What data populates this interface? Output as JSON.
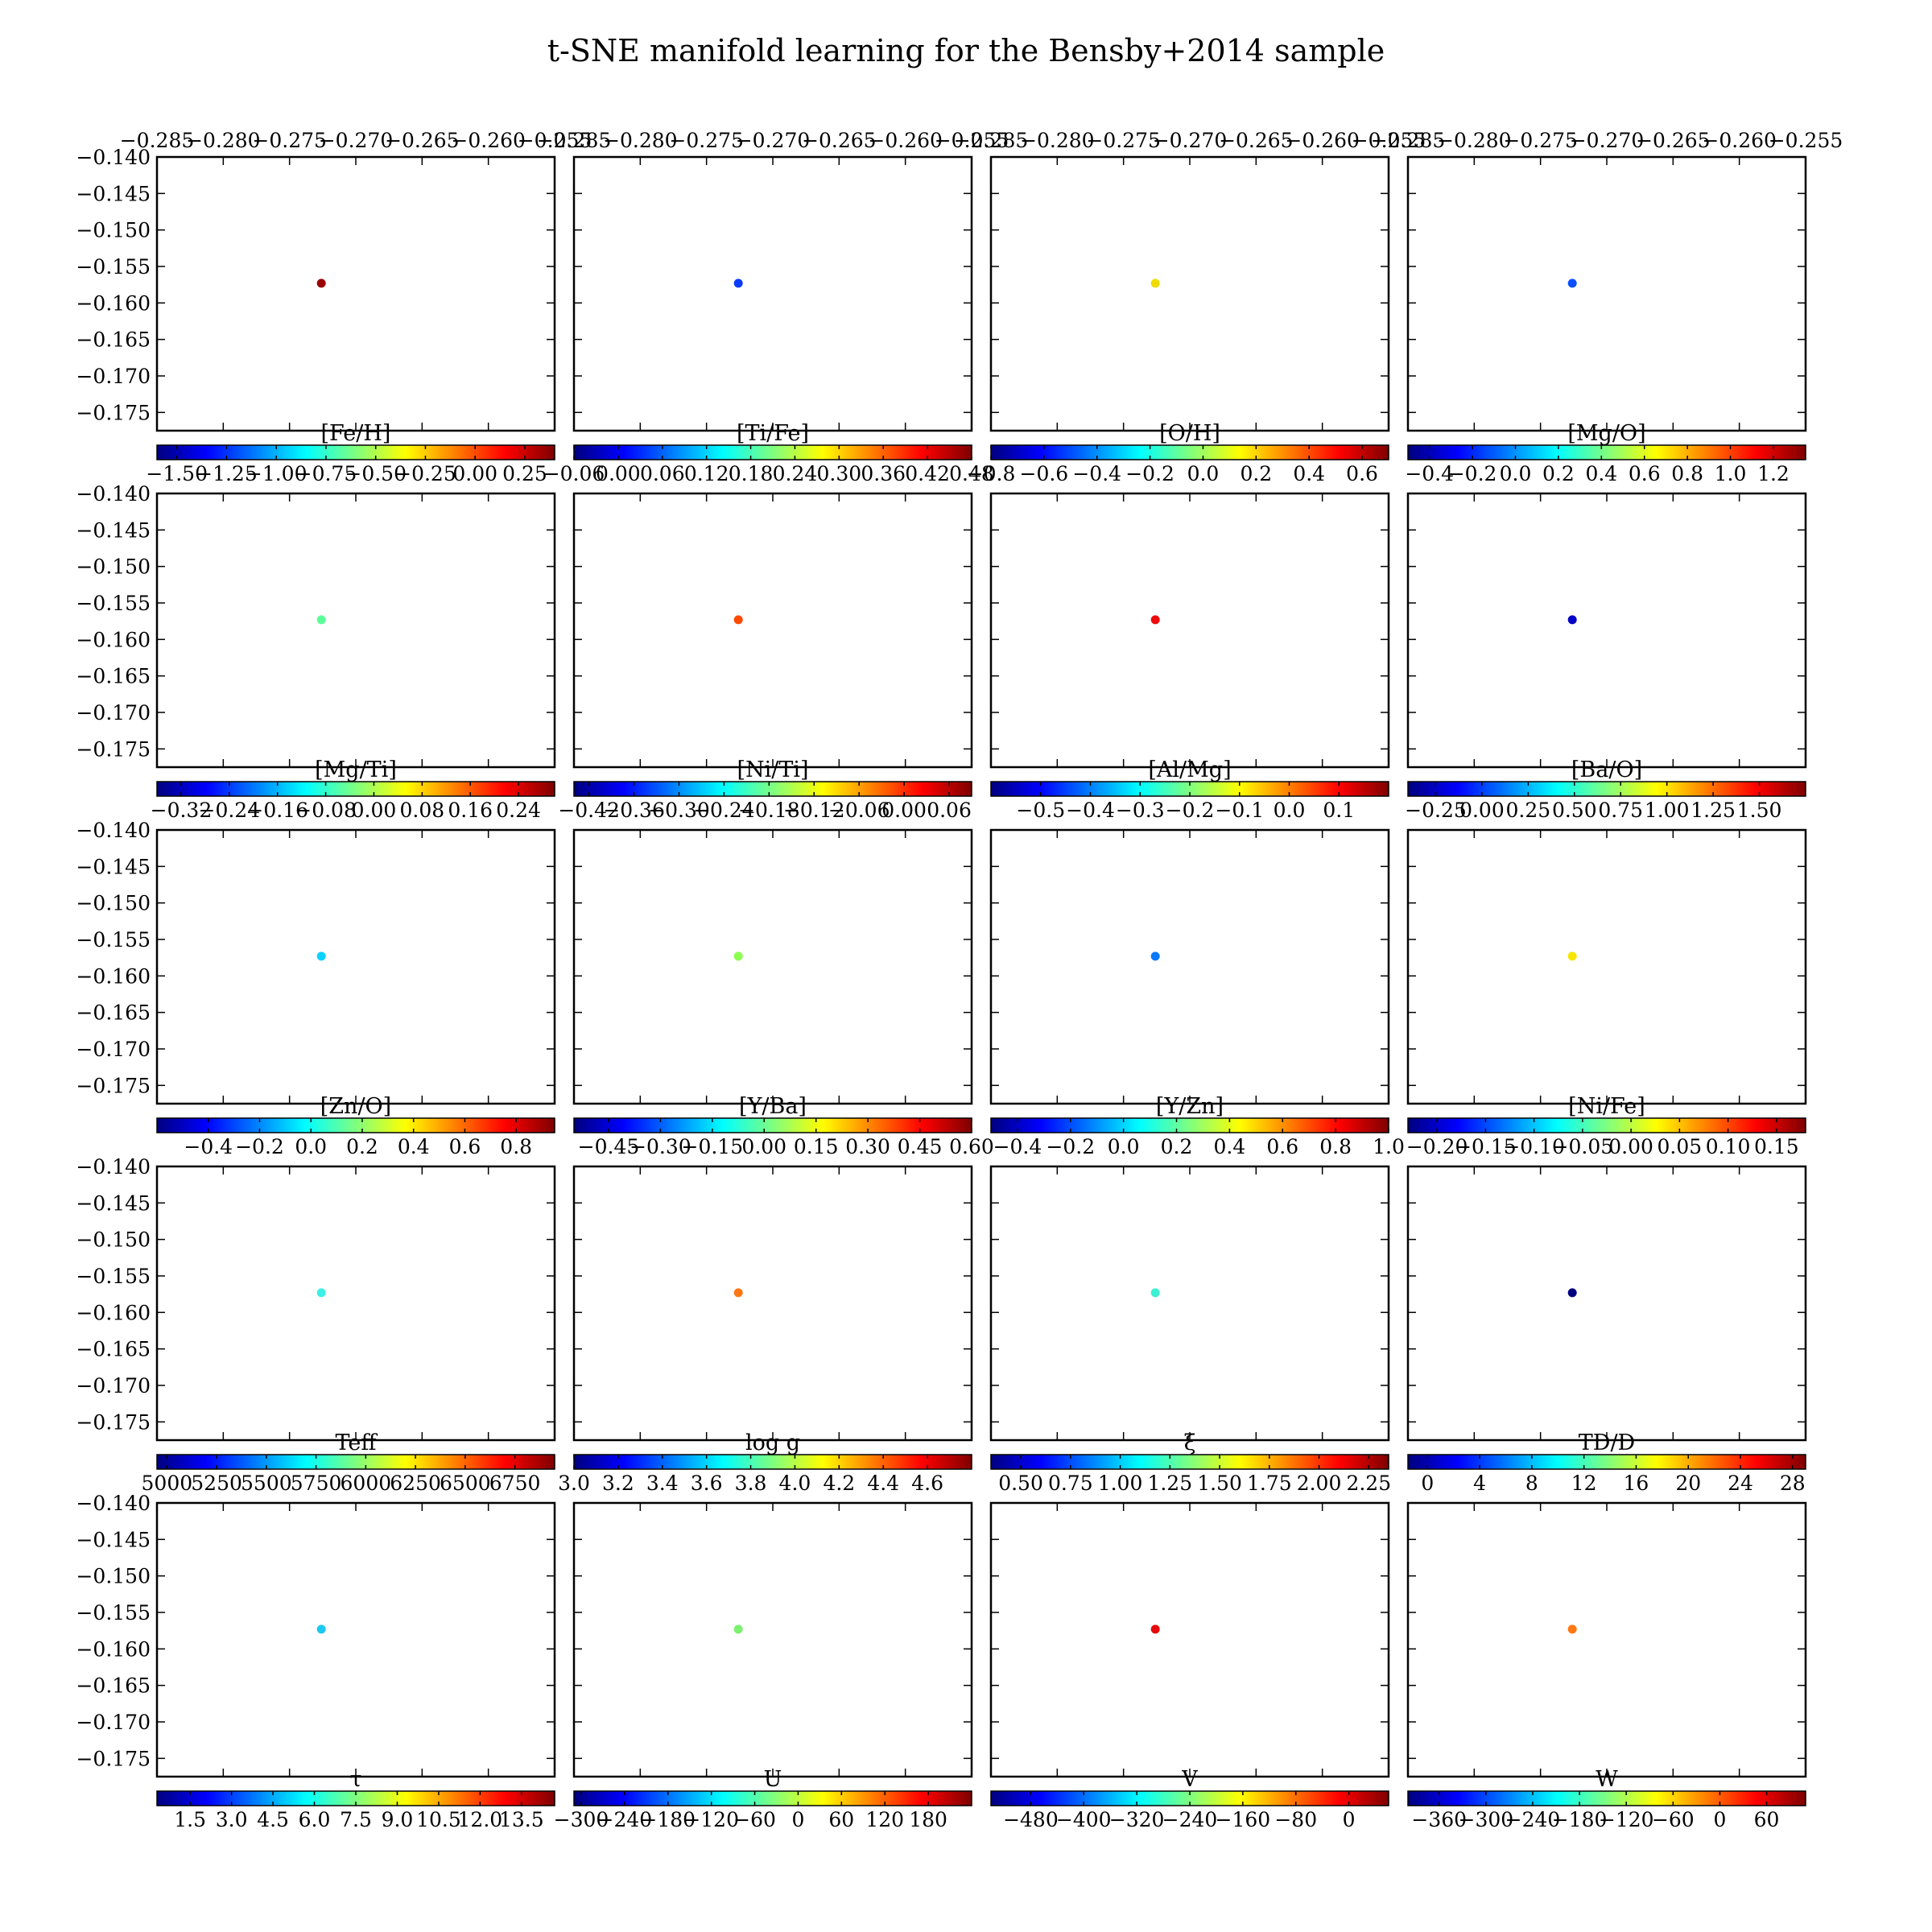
{
  "figure": {
    "title": "t-SNE manifold learning for the Bensby+2014 sample",
    "colormap": [
      "#00007f",
      "#0000ff",
      "#007fff",
      "#00ffff",
      "#7fff7f",
      "#ffff00",
      "#ff7f00",
      "#ff0000",
      "#7f0000"
    ]
  },
  "chart_data": [
    {
      "type": "scatter",
      "colorbar_label": "[Fe/H]",
      "colorbar_range": [
        -1.6,
        0.4
      ],
      "colorbar_ticks": [
        "−1.50",
        "−1.25",
        "−1.00",
        "−0.75",
        "−0.50",
        "−0.25",
        "0.00",
        "0.25"
      ],
      "colorbar_tick_values": [
        -1.5,
        -1.25,
        -1.0,
        -0.75,
        -0.5,
        -0.25,
        0.0,
        0.25
      ],
      "point_color": "#990000",
      "points": [
        {
          "x": -0.2726,
          "y": -0.1573
        }
      ],
      "xlim": [
        -0.285,
        -0.255
      ],
      "ylim": [
        -0.1775,
        -0.14
      ],
      "xticks": [
        "−0.285",
        "−0.280",
        "−0.275",
        "−0.270",
        "−0.265",
        "−0.260",
        "−0.255"
      ],
      "yticks": [
        "−0.140",
        "−0.145",
        "−0.150",
        "−0.155",
        "−0.160",
        "−0.165",
        "−0.170",
        "−0.175"
      ]
    },
    {
      "type": "scatter",
      "colorbar_label": "[Ti/Fe]",
      "colorbar_range": [
        -0.06,
        0.48
      ],
      "colorbar_ticks": [
        "−0.06",
        "0.00",
        "0.06",
        "0.12",
        "0.18",
        "0.24",
        "0.30",
        "0.36",
        "0.42",
        "0.48"
      ],
      "colorbar_tick_values": [
        -0.06,
        0.0,
        0.06,
        0.12,
        0.18,
        0.24,
        0.3,
        0.36,
        0.42,
        0.48
      ],
      "point_color": "#0a3cff",
      "points": [
        {
          "x": -0.2726,
          "y": -0.1573
        }
      ],
      "xlim": [
        -0.285,
        -0.255
      ],
      "ylim": [
        -0.1775,
        -0.14
      ],
      "xticks": [
        "−0.285",
        "−0.280",
        "−0.275",
        "−0.270",
        "−0.265",
        "−0.260",
        "−0.255"
      ]
    },
    {
      "type": "scatter",
      "colorbar_label": "[O/H]",
      "colorbar_range": [
        -0.8,
        0.7
      ],
      "colorbar_ticks": [
        "−0.8",
        "−0.6",
        "−0.4",
        "−0.2",
        "0.0",
        "0.2",
        "0.4",
        "0.6"
      ],
      "colorbar_tick_values": [
        -0.8,
        -0.6,
        -0.4,
        -0.2,
        0.0,
        0.2,
        0.4,
        0.6
      ],
      "point_color": "#f0dc00",
      "points": [
        {
          "x": -0.2726,
          "y": -0.1573
        }
      ],
      "xlim": [
        -0.285,
        -0.255
      ],
      "ylim": [
        -0.1775,
        -0.14
      ],
      "xticks": [
        "−0.285",
        "−0.280",
        "−0.275",
        "−0.270",
        "−0.265",
        "−0.260",
        "−0.255"
      ]
    },
    {
      "type": "scatter",
      "colorbar_label": "[Mg/O]",
      "colorbar_range": [
        -0.5,
        1.35
      ],
      "colorbar_ticks": [
        "−0.4",
        "−0.2",
        "0.0",
        "0.2",
        "0.4",
        "0.6",
        "0.8",
        "1.0",
        "1.2"
      ],
      "colorbar_tick_values": [
        -0.4,
        -0.2,
        0.0,
        0.2,
        0.4,
        0.6,
        0.8,
        1.0,
        1.2
      ],
      "point_color": "#0a50ff",
      "points": [
        {
          "x": -0.2726,
          "y": -0.1573
        }
      ],
      "xlim": [
        -0.285,
        -0.255
      ],
      "ylim": [
        -0.1775,
        -0.14
      ],
      "xticks": [
        "−0.285",
        "−0.280",
        "−0.275",
        "−0.270",
        "−0.265",
        "−0.260",
        "−0.255"
      ]
    },
    {
      "type": "scatter",
      "colorbar_label": "[Mg/Ti]",
      "colorbar_range": [
        -0.36,
        0.3
      ],
      "colorbar_ticks": [
        "−0.32",
        "−0.24",
        "−0.16",
        "−0.08",
        "0.00",
        "0.08",
        "0.16",
        "0.24"
      ],
      "colorbar_tick_values": [
        -0.32,
        -0.24,
        -0.16,
        -0.08,
        0.0,
        0.08,
        0.16,
        0.24
      ],
      "point_color": "#5aff9a",
      "points": [
        {
          "x": -0.2726,
          "y": -0.1573
        }
      ],
      "xlim": [
        -0.285,
        -0.255
      ],
      "ylim": [
        -0.1775,
        -0.14
      ],
      "yticks": [
        "−0.140",
        "−0.145",
        "−0.150",
        "−0.155",
        "−0.160",
        "−0.165",
        "−0.170",
        "−0.175"
      ]
    },
    {
      "type": "scatter",
      "colorbar_label": "[Ni/Ti]",
      "colorbar_range": [
        -0.44,
        0.09
      ],
      "colorbar_ticks": [
        "−0.42",
        "−0.36",
        "−0.30",
        "−0.24",
        "−0.18",
        "−0.12",
        "−0.06",
        "0.00",
        "0.06"
      ],
      "colorbar_tick_values": [
        -0.42,
        -0.36,
        -0.3,
        -0.24,
        -0.18,
        -0.12,
        -0.06,
        0.0,
        0.06
      ],
      "point_color": "#ff4a00",
      "points": [
        {
          "x": -0.2726,
          "y": -0.1573
        }
      ],
      "xlim": [
        -0.285,
        -0.255
      ],
      "ylim": [
        -0.1775,
        -0.14
      ]
    },
    {
      "type": "scatter",
      "colorbar_label": "[Al/Mg]",
      "colorbar_range": [
        -0.6,
        0.2
      ],
      "colorbar_ticks": [
        "−0.5",
        "−0.4",
        "−0.3",
        "−0.2",
        "−0.1",
        "0.0",
        "0.1"
      ],
      "colorbar_tick_values": [
        -0.5,
        -0.4,
        -0.3,
        -0.2,
        -0.1,
        0.0,
        0.1
      ],
      "point_color": "#f00a0a",
      "points": [
        {
          "x": -0.2726,
          "y": -0.1573
        }
      ],
      "xlim": [
        -0.285,
        -0.255
      ],
      "ylim": [
        -0.1775,
        -0.14
      ]
    },
    {
      "type": "scatter",
      "colorbar_label": "[Ba/O]",
      "colorbar_range": [
        -0.4,
        1.75
      ],
      "colorbar_ticks": [
        "−0.25",
        "0.00",
        "0.25",
        "0.50",
        "0.75",
        "1.00",
        "1.25",
        "1.50"
      ],
      "colorbar_tick_values": [
        -0.25,
        0.0,
        0.25,
        0.5,
        0.75,
        1.0,
        1.25,
        1.5
      ],
      "point_color": "#0000c8",
      "points": [
        {
          "x": -0.2726,
          "y": -0.1573
        }
      ],
      "xlim": [
        -0.285,
        -0.255
      ],
      "ylim": [
        -0.1775,
        -0.14
      ]
    },
    {
      "type": "scatter",
      "colorbar_label": "[Zn/O]",
      "colorbar_range": [
        -0.6,
        0.95
      ],
      "colorbar_ticks": [
        "−0.4",
        "−0.2",
        "0.0",
        "0.2",
        "0.4",
        "0.6",
        "0.8"
      ],
      "colorbar_tick_values": [
        -0.4,
        -0.2,
        0.0,
        0.2,
        0.4,
        0.6,
        0.8
      ],
      "point_color": "#0ad2ff",
      "points": [
        {
          "x": -0.2726,
          "y": -0.1573
        }
      ],
      "xlim": [
        -0.285,
        -0.255
      ],
      "ylim": [
        -0.1775,
        -0.14
      ],
      "yticks": [
        "−0.140",
        "−0.145",
        "−0.150",
        "−0.155",
        "−0.160",
        "−0.165",
        "−0.170",
        "−0.175"
      ]
    },
    {
      "type": "scatter",
      "colorbar_label": "[Y/Ba]",
      "colorbar_range": [
        -0.55,
        0.6
      ],
      "colorbar_ticks": [
        "−0.45",
        "−0.30",
        "−0.15",
        "0.00",
        "0.15",
        "0.30",
        "0.45",
        "0.60"
      ],
      "colorbar_tick_values": [
        -0.45,
        -0.3,
        -0.15,
        0.0,
        0.15,
        0.3,
        0.45,
        0.6
      ],
      "point_color": "#8cff50",
      "points": [
        {
          "x": -0.2726,
          "y": -0.1573
        }
      ],
      "xlim": [
        -0.285,
        -0.255
      ],
      "ylim": [
        -0.1775,
        -0.14
      ]
    },
    {
      "type": "scatter",
      "colorbar_label": "[Y/Zn]",
      "colorbar_range": [
        -0.5,
        1.0
      ],
      "colorbar_ticks": [
        "−0.4",
        "−0.2",
        "0.0",
        "0.2",
        "0.4",
        "0.6",
        "0.8",
        "1.0"
      ],
      "colorbar_tick_values": [
        -0.4,
        -0.2,
        0.0,
        0.2,
        0.4,
        0.6,
        0.8,
        1.0
      ],
      "point_color": "#0a78ff",
      "points": [
        {
          "x": -0.2726,
          "y": -0.1573
        }
      ],
      "xlim": [
        -0.285,
        -0.255
      ],
      "ylim": [
        -0.1775,
        -0.14
      ]
    },
    {
      "type": "scatter",
      "colorbar_label": "[Ni/Fe]",
      "colorbar_range": [
        -0.23,
        0.18
      ],
      "colorbar_ticks": [
        "−0.20",
        "−0.15",
        "−0.10",
        "−0.05",
        "0.00",
        "0.05",
        "0.10",
        "0.15"
      ],
      "colorbar_tick_values": [
        -0.2,
        -0.15,
        -0.1,
        -0.05,
        0.0,
        0.05,
        0.1,
        0.15
      ],
      "point_color": "#f5e600",
      "points": [
        {
          "x": -0.2726,
          "y": -0.1573
        }
      ],
      "xlim": [
        -0.285,
        -0.255
      ],
      "ylim": [
        -0.1775,
        -0.14
      ]
    },
    {
      "type": "scatter",
      "colorbar_label": "Teff",
      "colorbar_range": [
        4950,
        6950
      ],
      "colorbar_ticks": [
        "5000",
        "5250",
        "5500",
        "5750",
        "6000",
        "6250",
        "6500",
        "6750"
      ],
      "colorbar_tick_values": [
        5000,
        5250,
        5500,
        5750,
        6000,
        6250,
        6500,
        6750
      ],
      "point_color": "#3cf0e6",
      "points": [
        {
          "x": -0.2726,
          "y": -0.1573
        }
      ],
      "xlim": [
        -0.285,
        -0.255
      ],
      "ylim": [
        -0.1775,
        -0.14
      ],
      "yticks": [
        "−0.140",
        "−0.145",
        "−0.150",
        "−0.155",
        "−0.160",
        "−0.165",
        "−0.170",
        "−0.175"
      ]
    },
    {
      "type": "scatter",
      "colorbar_label": "log g",
      "colorbar_range": [
        3.0,
        4.8
      ],
      "colorbar_ticks": [
        "3.0",
        "3.2",
        "3.4",
        "3.6",
        "3.8",
        "4.0",
        "4.2",
        "4.4",
        "4.6"
      ],
      "colorbar_tick_values": [
        3.0,
        3.2,
        3.4,
        3.6,
        3.8,
        4.0,
        4.2,
        4.4,
        4.6
      ],
      "point_color": "#ff7814",
      "points": [
        {
          "x": -0.2726,
          "y": -0.1573
        }
      ],
      "xlim": [
        -0.285,
        -0.255
      ],
      "ylim": [
        -0.1775,
        -0.14
      ]
    },
    {
      "type": "scatter",
      "colorbar_label": "ξ",
      "colorbar_range": [
        0.35,
        2.35
      ],
      "colorbar_ticks": [
        "0.50",
        "0.75",
        "1.00",
        "1.25",
        "1.50",
        "1.75",
        "2.00",
        "2.25"
      ],
      "colorbar_tick_values": [
        0.5,
        0.75,
        1.0,
        1.25,
        1.5,
        1.75,
        2.0,
        2.25
      ],
      "point_color": "#3cf0d2",
      "points": [
        {
          "x": -0.2726,
          "y": -0.1573
        }
      ],
      "xlim": [
        -0.285,
        -0.255
      ],
      "ylim": [
        -0.1775,
        -0.14
      ]
    },
    {
      "type": "scatter",
      "colorbar_label": "TD/D",
      "colorbar_range": [
        -1.5,
        29
      ],
      "colorbar_ticks": [
        "0",
        "4",
        "8",
        "12",
        "16",
        "20",
        "24",
        "28"
      ],
      "colorbar_tick_values": [
        0,
        4,
        8,
        12,
        16,
        20,
        24,
        28
      ],
      "point_color": "#000080",
      "points": [
        {
          "x": -0.2726,
          "y": -0.1573
        }
      ],
      "xlim": [
        -0.285,
        -0.255
      ],
      "ylim": [
        -0.1775,
        -0.14
      ]
    },
    {
      "type": "scatter",
      "colorbar_label": "τ",
      "colorbar_range": [
        0.3,
        14.7
      ],
      "colorbar_ticks": [
        "1.5",
        "3.0",
        "4.5",
        "6.0",
        "7.5",
        "9.0",
        "10.5",
        "12.0",
        "13.5"
      ],
      "colorbar_tick_values": [
        1.5,
        3.0,
        4.5,
        6.0,
        7.5,
        9.0,
        10.5,
        12.0,
        13.5
      ],
      "point_color": "#1ec8f0",
      "points": [
        {
          "x": -0.2726,
          "y": -0.1573
        }
      ],
      "xlim": [
        -0.285,
        -0.255
      ],
      "ylim": [
        -0.1775,
        -0.14
      ],
      "yticks": [
        "−0.140",
        "−0.145",
        "−0.150",
        "−0.155",
        "−0.160",
        "−0.165",
        "−0.170",
        "−0.175"
      ]
    },
    {
      "type": "scatter",
      "colorbar_label": "U",
      "colorbar_range": [
        -310,
        240
      ],
      "colorbar_ticks": [
        "−300",
        "−240",
        "−180",
        "−120",
        "−60",
        "0",
        "60",
        "120",
        "180"
      ],
      "colorbar_tick_values": [
        -300,
        -240,
        -180,
        -120,
        -60,
        0,
        60,
        120,
        180
      ],
      "point_color": "#7cf070",
      "points": [
        {
          "x": -0.2726,
          "y": -0.1573
        }
      ],
      "xlim": [
        -0.285,
        -0.255
      ],
      "ylim": [
        -0.1775,
        -0.14
      ]
    },
    {
      "type": "scatter",
      "colorbar_label": "V",
      "colorbar_range": [
        -540,
        60
      ],
      "colorbar_ticks": [
        "−480",
        "−400",
        "−320",
        "−240",
        "−160",
        "−80",
        "0"
      ],
      "colorbar_tick_values": [
        -480,
        -400,
        -320,
        -240,
        -160,
        -80,
        0
      ],
      "point_color": "#e60a0a",
      "points": [
        {
          "x": -0.2726,
          "y": -0.1573
        }
      ],
      "xlim": [
        -0.285,
        -0.255
      ],
      "ylim": [
        -0.1775,
        -0.14
      ]
    },
    {
      "type": "scatter",
      "colorbar_label": "W",
      "colorbar_range": [
        -400,
        110
      ],
      "colorbar_ticks": [
        "−360",
        "−300",
        "−240",
        "−180",
        "−120",
        "−60",
        "0",
        "60"
      ],
      "colorbar_tick_values": [
        -360,
        -300,
        -240,
        -180,
        -120,
        -60,
        0,
        60
      ],
      "point_color": "#ff7814",
      "points": [
        {
          "x": -0.2726,
          "y": -0.1573
        }
      ],
      "xlim": [
        -0.285,
        -0.255
      ],
      "ylim": [
        -0.1775,
        -0.14
      ]
    }
  ]
}
